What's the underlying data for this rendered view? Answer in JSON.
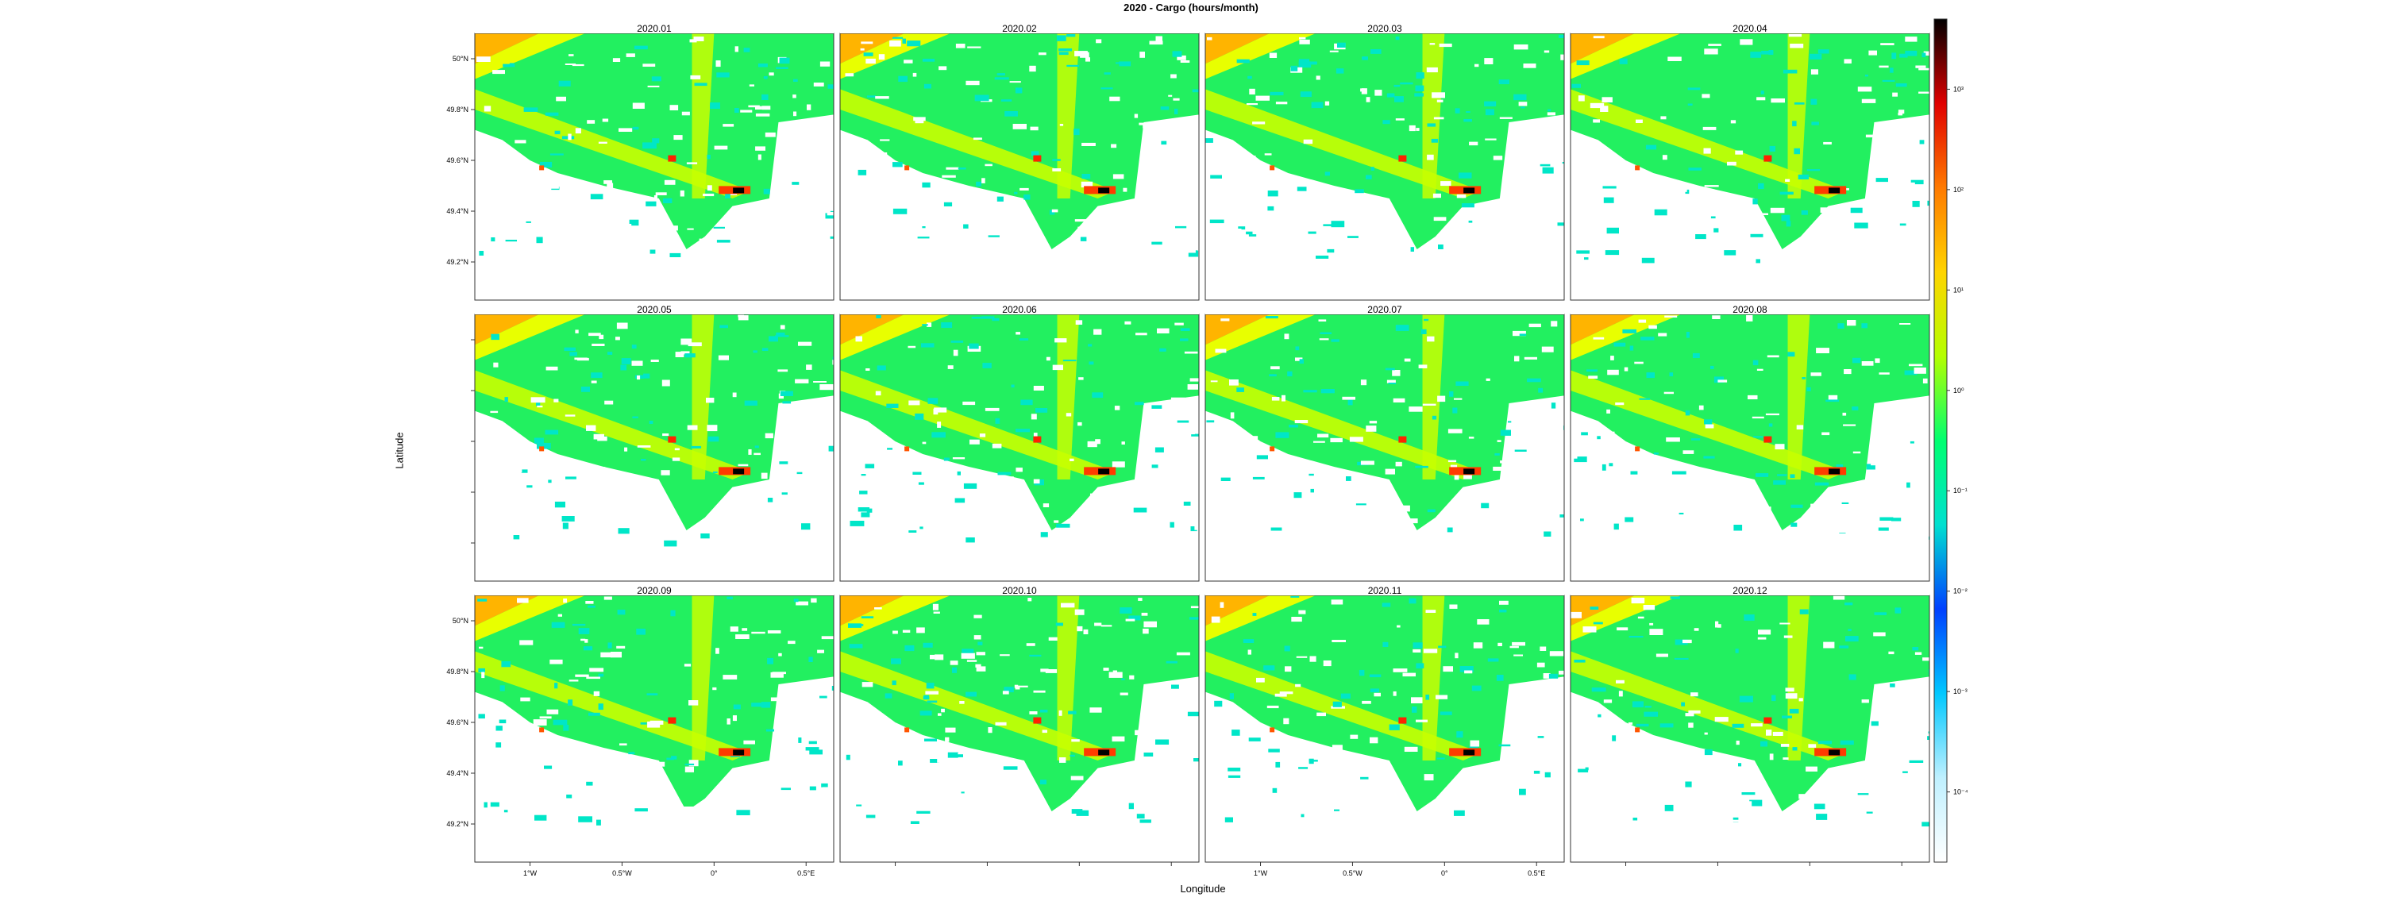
{
  "chart_data": {
    "type": "heatmap",
    "title": "2020 - Cargo (hours/month)",
    "xlabel": "Longitude",
    "ylabel": "Latitude",
    "panels": [
      "2020.01",
      "2020.02",
      "2020.03",
      "2020.04",
      "2020.05",
      "2020.06",
      "2020.07",
      "2020.08",
      "2020.09",
      "2020.10",
      "2020.11",
      "2020.12"
    ],
    "xlim": [
      -1.3,
      0.65
    ],
    "ylim": [
      49.05,
      50.1
    ],
    "x_ticks": [
      {
        "value": -1.0,
        "label": "1°W"
      },
      {
        "value": -0.5,
        "label": "0.5°W"
      },
      {
        "value": 0.0,
        "label": "0°"
      },
      {
        "value": 0.5,
        "label": "0.5°E"
      }
    ],
    "y_ticks": [
      {
        "value": 49.2,
        "label": "49.2°N"
      },
      {
        "value": 49.4,
        "label": "49.4°N"
      },
      {
        "value": 49.6,
        "label": "49.6°N"
      },
      {
        "value": 49.8,
        "label": "49.8°N"
      },
      {
        "value": 50.0,
        "label": "50°N"
      }
    ],
    "colorbar": {
      "scale": "log",
      "ticks": [
        {
          "value": 0.0001,
          "label": "10⁻⁴"
        },
        {
          "value": 0.001,
          "label": "10⁻³"
        },
        {
          "value": 0.01,
          "label": "10⁻²"
        },
        {
          "value": 0.1,
          "label": "10⁻¹"
        },
        {
          "value": 1,
          "label": "10⁰"
        },
        {
          "value": 10,
          "label": "10¹"
        },
        {
          "value": 100,
          "label": "10²"
        },
        {
          "value": 1000,
          "label": "10³"
        }
      ],
      "range": [
        2e-05,
        5000
      ],
      "colors": [
        "#ffffff",
        "#bff0ff",
        "#00c8ff",
        "#0040ff",
        "#00e0d0",
        "#00ff70",
        "#b4ff00",
        "#ffd400",
        "#ff7a00",
        "#e00000",
        "#000000"
      ]
    },
    "grid": false,
    "legend_position": "right"
  }
}
